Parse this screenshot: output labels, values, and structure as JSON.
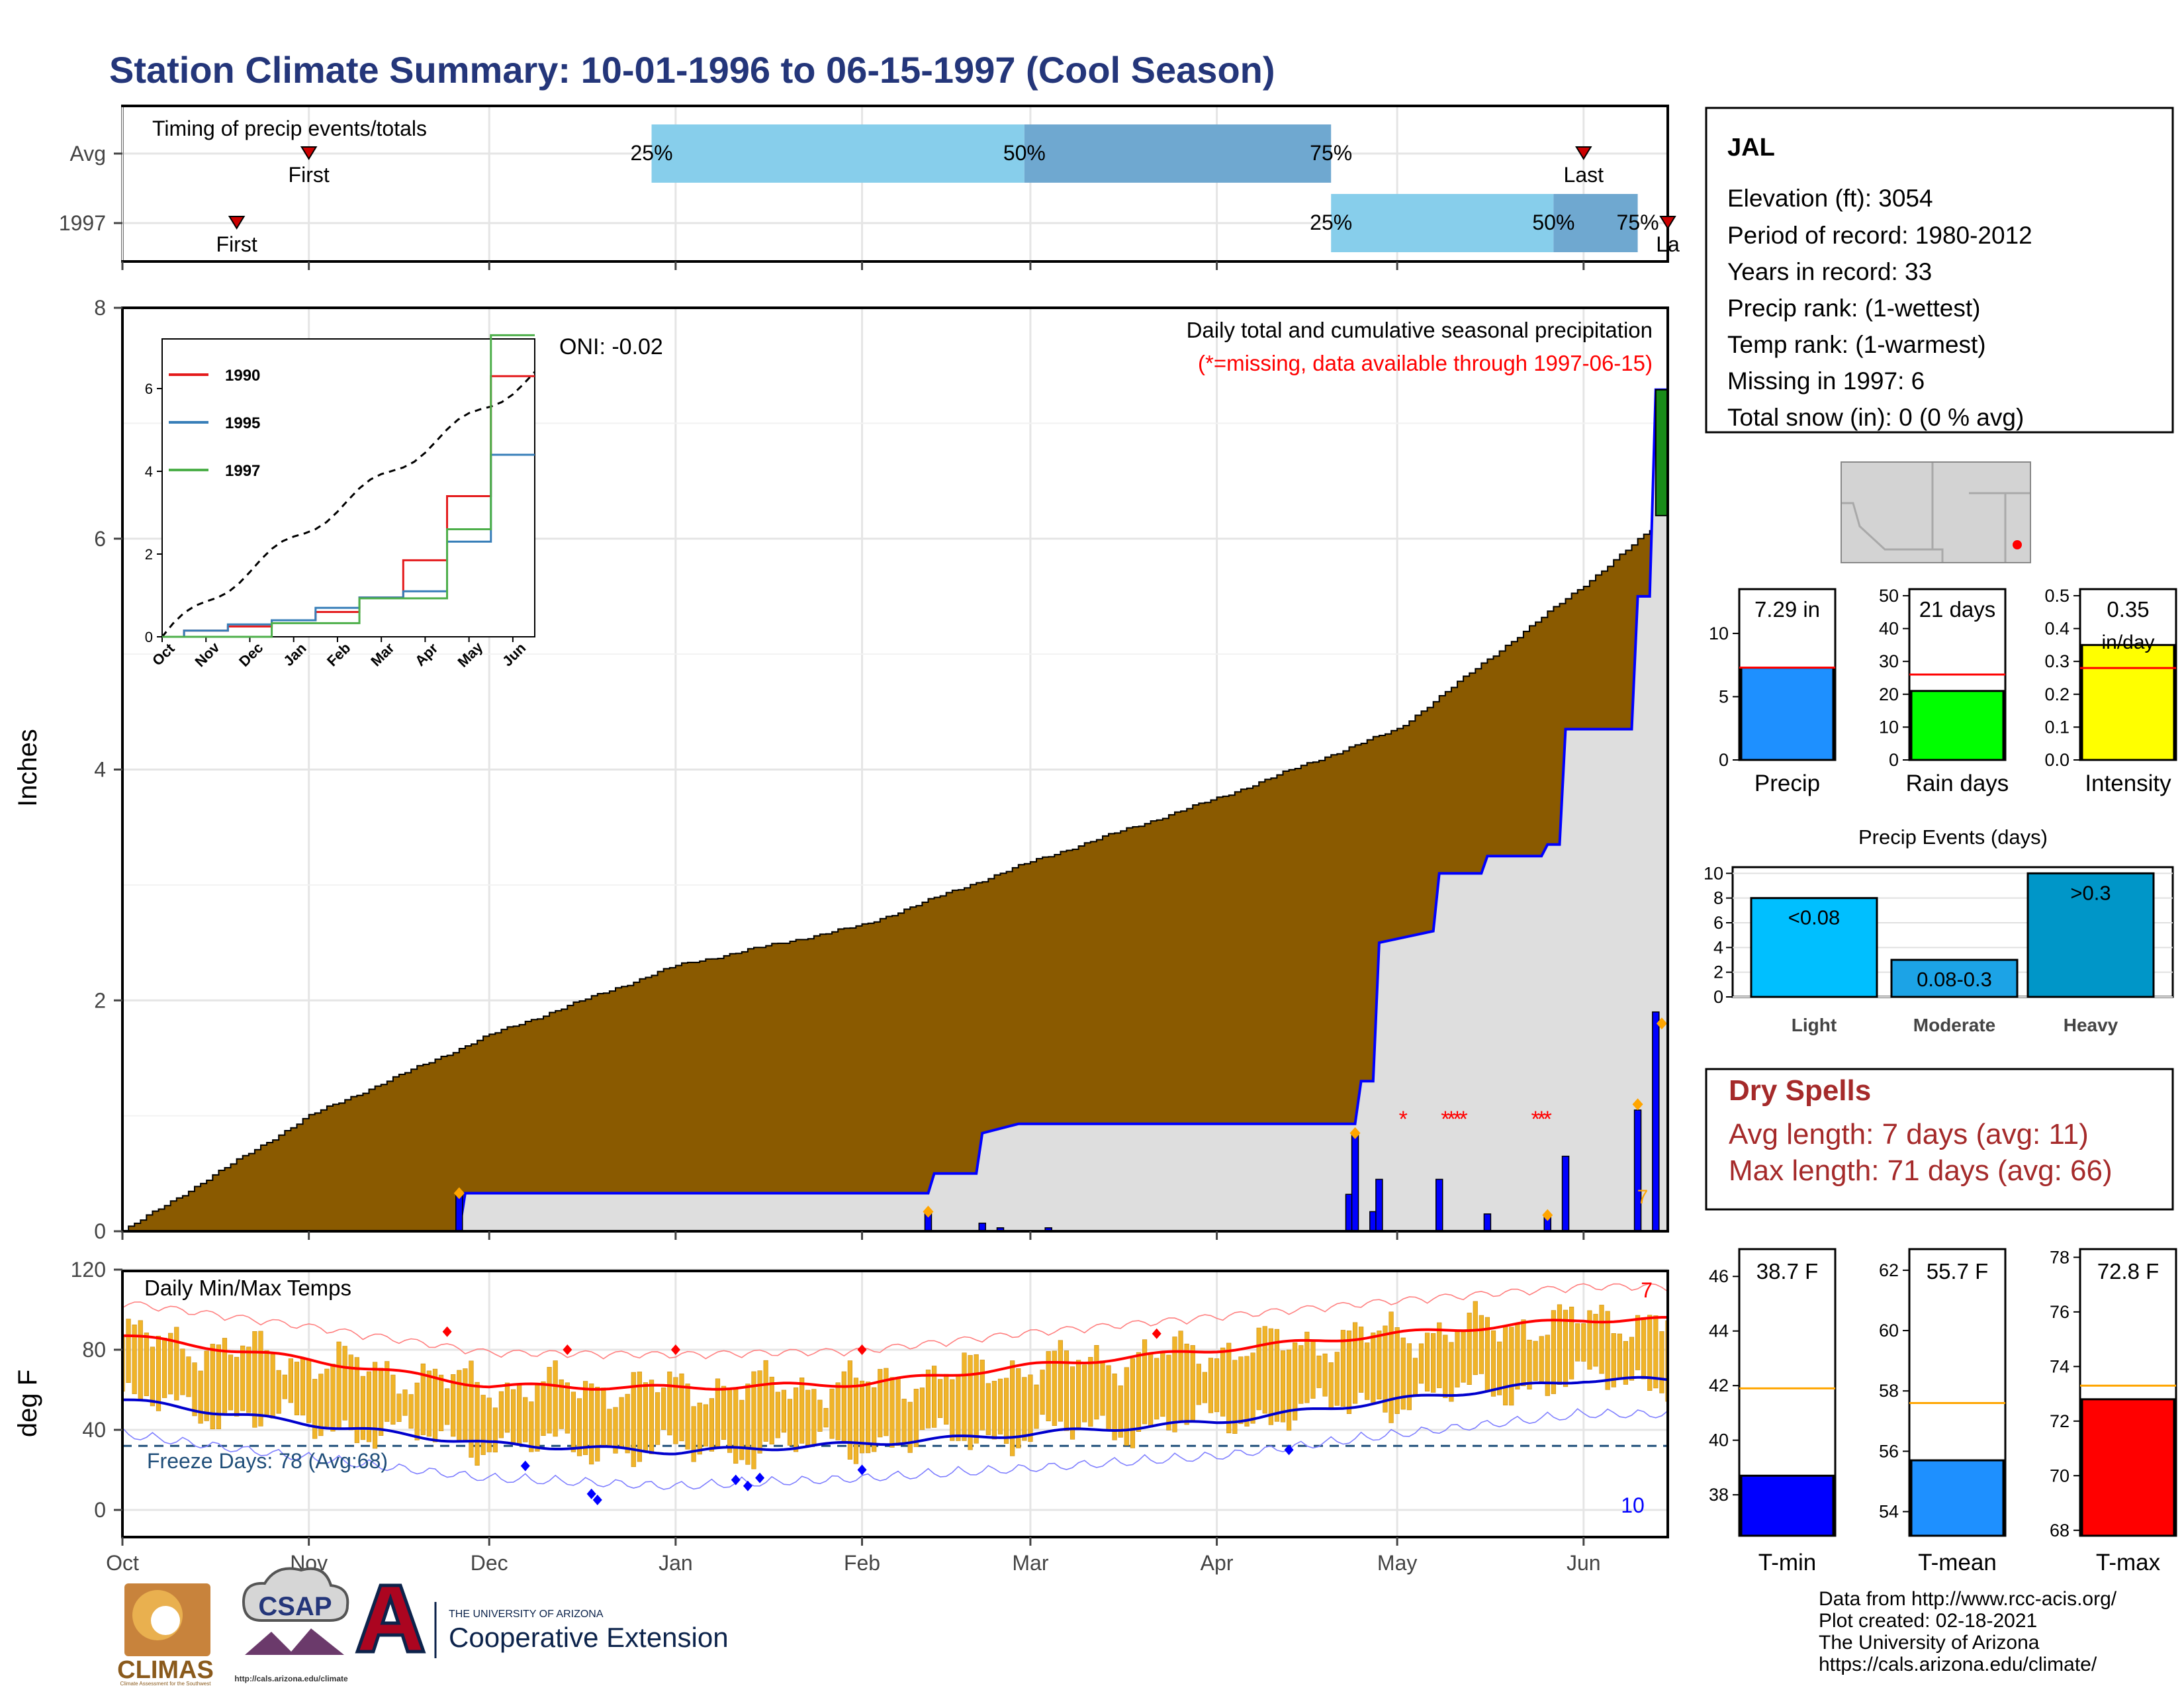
{
  "title": "Station Climate Summary: 10-01-1996 to 06-15-1997 (Cool Season)",
  "colors": {
    "title": "#24367a",
    "cumulative_fill": "#8a5a00",
    "current_precip": "#0000ff",
    "inset_1990": "#e41a1c",
    "inset_1995": "#377eb8",
    "inset_1997": "#4daf4a",
    "timing_light": "#87ceeb",
    "timing_dark": "#6fa8d0",
    "temp_bar": "#f0b429",
    "tmax_line": "#ff0000",
    "tmin_line": "#0000cd",
    "dry_spells": "#a52a2a",
    "precip_bar": "#1e90ff",
    "raindays_bar": "#00ff00",
    "intensity_bar": "#ffff00",
    "events_light": "#00bfff",
    "events_moderate": "#1ca3e6",
    "events_heavy": "#0096c8",
    "tmin_bar": "#0000ff",
    "tmean_bar": "#1e90ff",
    "tmax_bar": "#ff0000",
    "avg_line": "#ffa500",
    "freeze_line": "#1f4e79"
  },
  "timing": {
    "title": "Timing of precip events/totals",
    "rows": [
      {
        "label": "Avg",
        "first": "First",
        "last": "Last",
        "first_date": "1996-11-01",
        "last_date": "1997-06-01",
        "p25": "1996-12-28",
        "p50": "1997-02-28",
        "p75": "1997-04-20"
      },
      {
        "label": "1997",
        "first": "First",
        "last": "La",
        "first_date": "1996-10-20",
        "last_date": "1997-06-15",
        "p25": "1997-04-20",
        "p50": "1997-05-27",
        "p75": "1997-06-10"
      }
    ],
    "pct_labels": [
      "25%",
      "50%",
      "75%"
    ]
  },
  "precip_panel": {
    "ylabel": "Inches",
    "yticks": [
      "0",
      "2",
      "4",
      "6",
      "8"
    ],
    "oni": "ONI: -0.02",
    "caption": "Daily total and cumulative seasonal precipitation",
    "missing_note": "(*=missing, data available through 1997-06-15)",
    "seven_marker": "7"
  },
  "inset": {
    "yticks": [
      "0",
      "2",
      "4",
      "6"
    ],
    "xticks": [
      "Oct",
      "Nov",
      "Dec",
      "Jan",
      "Feb",
      "Mar",
      "Apr",
      "May",
      "Jun"
    ],
    "legend": [
      "1990",
      "1995",
      "1997"
    ]
  },
  "temp_panel": {
    "ylabel": "deg F",
    "title": "Daily Min/Max Temps",
    "yticks": [
      "0",
      "40",
      "80",
      "120"
    ],
    "freeze": "Freeze Days: 78 (Avg:68)",
    "top_right": "7",
    "bottom_right": "10"
  },
  "xaxis_months": [
    "Oct",
    "Nov",
    "Dec",
    "Jan",
    "Feb",
    "Mar",
    "Apr",
    "May",
    "Jun"
  ],
  "station": {
    "name": "JAL",
    "lines": [
      "Elevation (ft): 3054",
      "Period of record: 1980-2012",
      "Years in record: 33",
      "Precip rank:  (1-wettest)",
      "Temp rank:  (1-warmest)",
      "Missing in 1997: 6",
      "Total snow (in): 0 (0 % avg)"
    ]
  },
  "summary_bars": [
    {
      "label": "Precip",
      "value_label": "7.29 in",
      "value": 7.29,
      "avg": 7.3,
      "ymax": 13.5,
      "yticks": [
        "0",
        "5",
        "10"
      ],
      "tick_values": [
        0,
        5,
        10
      ]
    },
    {
      "label": "Rain days",
      "value_label": "21 days",
      "value": 21,
      "avg": 26,
      "ymax": 52,
      "yticks": [
        "0",
        "10",
        "20",
        "30",
        "40",
        "50"
      ],
      "tick_values": [
        0,
        10,
        20,
        30,
        40,
        50
      ]
    },
    {
      "label": "Intensity",
      "value_label": "0.35",
      "value_label2": "in/day",
      "value": 0.35,
      "avg": 0.28,
      "ymax": 0.52,
      "yticks": [
        "0.0",
        "0.1",
        "0.2",
        "0.3",
        "0.4",
        "0.5"
      ],
      "tick_values": [
        0,
        0.1,
        0.2,
        0.3,
        0.4,
        0.5
      ]
    }
  ],
  "precip_events": {
    "title": "Precip Events (days)",
    "yticks": [
      "0",
      "2",
      "4",
      "6",
      "8",
      "10"
    ],
    "categories": [
      "Light",
      "Moderate",
      "Heavy"
    ],
    "bar_labels": [
      "<0.08",
      "0.08-0.3",
      ">0.3"
    ],
    "values": [
      8,
      3,
      10
    ]
  },
  "dry_spells": {
    "title": "Dry Spells",
    "lines": [
      "Avg length: 7 days (avg: 11)",
      "Max length: 71 days (avg: 66)"
    ]
  },
  "temp_bars": [
    {
      "label": "T-min",
      "value_label": "38.7 F",
      "value": 38.7,
      "avg": 41.9,
      "ymin": 36.5,
      "ymax": 47.0,
      "yticks": [
        "38",
        "40",
        "42",
        "44",
        "46"
      ],
      "tick_values": [
        38,
        40,
        42,
        44,
        46
      ]
    },
    {
      "label": "T-mean",
      "value_label": "55.7 F",
      "value": 55.7,
      "avg": 57.6,
      "ymin": 53.2,
      "ymax": 62.7,
      "yticks": [
        "54",
        "56",
        "58",
        "60",
        "62"
      ],
      "tick_values": [
        54,
        56,
        58,
        60,
        62
      ]
    },
    {
      "label": "T-max",
      "value_label": "72.8 F",
      "value": 72.8,
      "avg": 73.3,
      "ymin": 67.8,
      "ymax": 78.3,
      "yticks": [
        "68",
        "70",
        "72",
        "74",
        "76",
        "78"
      ],
      "tick_values": [
        68,
        70,
        72,
        74,
        76,
        78
      ]
    }
  ],
  "credits": [
    "Data from http://www.rcc-acis.org/",
    "Plot created: 02-18-2021",
    "The University of Arizona",
    "https://cals.arizona.edu/climate/"
  ],
  "logos": {
    "climas": "CLIMAS",
    "climas_sub": "Climate Assessment for the Southwest",
    "csap": "CSAP",
    "csap_url": "http://cals.arizona.edu/climate",
    "ua_line1": "THE UNIVERSITY OF ARIZONA",
    "ua_line2": "Cooperative Extension"
  },
  "chart_data": [
    {
      "type": "area",
      "title": "Daily total and cumulative seasonal precipitation",
      "ylabel": "Inches",
      "ylim": [
        0,
        8
      ],
      "series": [
        {
          "name": "cumulative average",
          "x": [
            "1996-10-01",
            "1996-11-01",
            "1996-12-01",
            "1997-01-01",
            "1997-02-01",
            "1997-03-01",
            "1997-04-01",
            "1997-05-01",
            "1997-06-01",
            "1997-06-15"
          ],
          "values": [
            0,
            1.0,
            1.7,
            2.3,
            2.65,
            3.2,
            3.75,
            4.35,
            5.6,
            6.2
          ]
        },
        {
          "name": "1997 cumulative",
          "x": [
            "1996-10-01",
            "1996-11-26",
            "1996-11-27",
            "1997-02-12",
            "1997-02-13",
            "1997-02-20",
            "1997-02-21",
            "1997-02-27",
            "1997-04-24",
            "1997-04-25",
            "1997-04-27",
            "1997-04-28",
            "1997-05-07",
            "1997-05-08",
            "1997-05-15",
            "1997-05-16",
            "1997-05-25",
            "1997-05-26",
            "1997-05-28",
            "1997-05-29",
            "1997-06-09",
            "1997-06-10",
            "1997-06-12",
            "1997-06-13",
            "1997-06-15"
          ],
          "values": [
            0,
            0,
            0.33,
            0.33,
            0.5,
            0.5,
            0.85,
            0.93,
            0.93,
            1.3,
            1.3,
            2.5,
            2.6,
            3.1,
            3.1,
            3.25,
            3.25,
            3.35,
            3.35,
            4.35,
            4.35,
            5.5,
            5.5,
            7.29,
            7.29
          ]
        },
        {
          "name": "daily precip",
          "x": [
            "1996-11-26",
            "1997-02-12",
            "1997-02-21",
            "1997-02-24",
            "1997-03-04",
            "1997-04-23",
            "1997-04-24",
            "1997-04-27",
            "1997-04-28",
            "1997-05-08",
            "1997-05-16",
            "1997-05-26",
            "1997-05-29",
            "1997-06-10",
            "1997-06-13"
          ],
          "values": [
            0.33,
            0.17,
            0.07,
            0.03,
            0.03,
            0.32,
            0.85,
            0.17,
            0.45,
            0.45,
            0.15,
            0.12,
            0.65,
            1.05,
            1.9
          ]
        }
      ]
    },
    {
      "type": "line",
      "title": "",
      "ylim": [
        0,
        7.2
      ],
      "categories": [
        "Oct",
        "Nov",
        "Dec",
        "Jan",
        "Feb",
        "Mar",
        "Apr",
        "May",
        "Jun"
      ],
      "series": [
        {
          "name": "1990",
          "values": [
            0,
            0.15,
            0.25,
            0.4,
            0.6,
            0.95,
            1.85,
            3.4,
            6.3
          ]
        },
        {
          "name": "1995",
          "values": [
            0,
            0.15,
            0.3,
            0.4,
            0.7,
            0.95,
            1.1,
            2.3,
            4.4
          ]
        },
        {
          "name": "1997",
          "values": [
            0,
            0,
            0,
            0.33,
            0.33,
            0.93,
            0.93,
            2.6,
            7.29
          ]
        }
      ]
    },
    {
      "type": "bar",
      "title": "Daily Min/Max Temps",
      "ylabel": "deg F",
      "ylim": [
        -10,
        120
      ],
      "series": [
        {
          "name": "avg max",
          "x": [
            "1996-10-01",
            "1996-11-01",
            "1996-12-01",
            "1997-01-01",
            "1997-02-01",
            "1997-03-01",
            "1997-04-01",
            "1997-05-01",
            "1997-06-01"
          ],
          "values": [
            87,
            75,
            62,
            61,
            63,
            72,
            80,
            88,
            95
          ]
        },
        {
          "name": "avg min",
          "x": [
            "1996-10-01",
            "1996-11-01",
            "1996-12-01",
            "1997-01-01",
            "1997-02-01",
            "1997-03-01",
            "1997-04-01",
            "1997-05-01",
            "1997-06-01"
          ],
          "values": [
            55,
            43,
            33,
            29,
            33,
            38,
            44,
            55,
            65
          ]
        }
      ]
    }
  ]
}
